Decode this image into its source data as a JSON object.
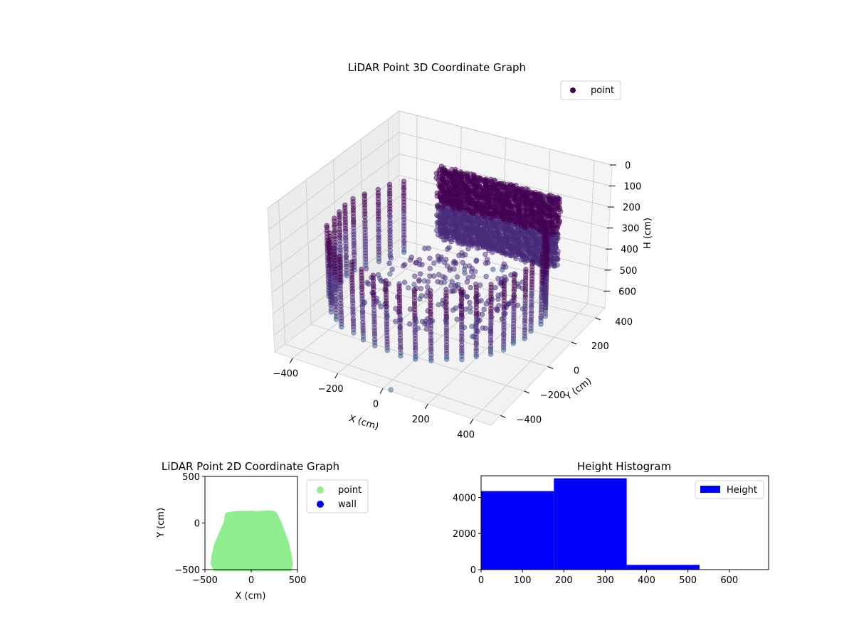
{
  "chart_data": [
    {
      "type": "scatter",
      "projection": "3d",
      "title": "LiDAR Point 3D Coordinate Graph",
      "xlabel": "X (cm)",
      "ylabel": "Y (cm)",
      "zlabel": "H (cm)",
      "xticks": [
        "−400",
        "−200",
        "0",
        "200",
        "400"
      ],
      "yticks": [
        "−400",
        "−200",
        "0",
        "200",
        "400"
      ],
      "zticks": [
        "0",
        "100",
        "200",
        "300",
        "400",
        "500",
        "600"
      ],
      "xlim": [
        -480,
        480
      ],
      "ylim": [
        -480,
        480
      ],
      "zlim": [
        0,
        680
      ],
      "z_inverted": true,
      "grid": true,
      "legend": {
        "position": "top-right",
        "entries": [
          "point"
        ]
      },
      "series": [
        {
          "name": "point",
          "color": "#440154",
          "shape": "room walls: ring of vertical point columns at radius ~420 cm (height 180–520 cm) plus dense back wall near y≈+380; floor points near height 400–500 cm"
        }
      ]
    },
    {
      "type": "scatter",
      "title": "LiDAR Point 2D Coordinate Graph",
      "xlabel": "X (cm)",
      "ylabel": "Y (cm)",
      "xticks": [
        "−500",
        "0",
        "500"
      ],
      "yticks": [
        "−500",
        "0",
        "500"
      ],
      "xlim": [
        -500,
        500
      ],
      "ylim": [
        -500,
        500
      ],
      "legend": {
        "position": "outside-right",
        "entries": [
          "point",
          "wall"
        ]
      },
      "series": [
        {
          "name": "point",
          "color": "#90ee90",
          "outline": [
            [
              -260,
              95
            ],
            [
              -200,
              105
            ],
            [
              -130,
              112
            ],
            [
              -60,
              110
            ],
            [
              0,
              112
            ],
            [
              60,
              108
            ],
            [
              130,
              112
            ],
            [
              200,
              116
            ],
            [
              250,
              110
            ],
            [
              270,
              80
            ],
            [
              300,
              20
            ],
            [
              340,
              -80
            ],
            [
              390,
              -220
            ],
            [
              420,
              -360
            ],
            [
              430,
              -440
            ],
            [
              420,
              -500
            ],
            [
              -390,
              -500
            ],
            [
              -420,
              -440
            ],
            [
              -410,
              -350
            ],
            [
              -380,
              -230
            ],
            [
              -330,
              -110
            ],
            [
              -280,
              0
            ],
            [
              -270,
              60
            ]
          ]
        },
        {
          "name": "wall",
          "color": "#0000ff",
          "points": []
        }
      ]
    },
    {
      "type": "bar",
      "subtype": "histogram",
      "title": "Height Histogram",
      "xticks": [
        "0",
        "100",
        "200",
        "300",
        "400",
        "500",
        "600"
      ],
      "yticks": [
        "0",
        "2000",
        "4000"
      ],
      "xlim": [
        0,
        695
      ],
      "ylim": [
        0,
        5200
      ],
      "legend": {
        "position": "top-right",
        "entries": [
          "Height"
        ]
      },
      "series": [
        {
          "name": "Height",
          "color": "#0000ff",
          "bins": [
            [
              0,
              176,
              4350
            ],
            [
              176,
              352,
              5060
            ],
            [
              352,
              528,
              260
            ],
            [
              528,
              695,
              0
            ]
          ]
        }
      ]
    }
  ]
}
